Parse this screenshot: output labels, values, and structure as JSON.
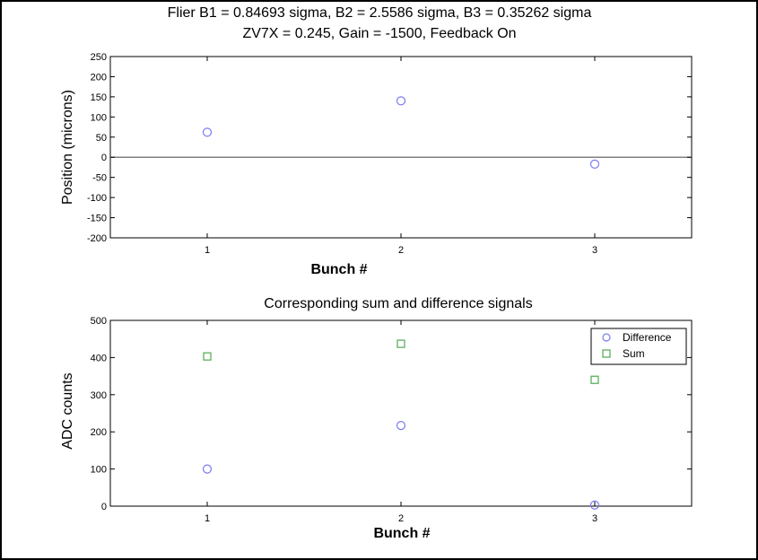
{
  "figure": {
    "title_line1": "Flier B1 = 0.84693 sigma,  B2 = 2.5586 sigma,  B3 = 0.35262 sigma",
    "title_line2": "ZV7X = 0.245, Gain = -1500, Feedback On"
  },
  "colors": {
    "difference": "#7b7bf0",
    "sum": "#4fa94f",
    "axes": "#000000",
    "zero_line": "#808080"
  },
  "chart_data": [
    {
      "type": "scatter",
      "title": "",
      "xlabel": "Bunch #",
      "ylabel": "Position (microns)",
      "xlim": [
        0.5,
        3.5
      ],
      "ylim": [
        -200,
        250
      ],
      "x_ticks": [
        1,
        2,
        3
      ],
      "y_ticks": [
        -200,
        -150,
        -100,
        -50,
        0,
        50,
        100,
        150,
        200,
        250
      ],
      "grid": false,
      "zero_line": true,
      "series": [
        {
          "marker": "circle",
          "color": "#7b7bf0",
          "x": [
            1,
            2,
            3
          ],
          "y": [
            62,
            140,
            -17
          ]
        }
      ]
    },
    {
      "type": "scatter",
      "title": "Corresponding sum and difference signals",
      "xlabel": "Bunch #",
      "ylabel": "ADC counts",
      "xlim": [
        0.5,
        3.5
      ],
      "ylim": [
        0,
        500
      ],
      "x_ticks": [
        1,
        2,
        3
      ],
      "y_ticks": [
        0,
        100,
        200,
        300,
        400,
        500
      ],
      "grid": false,
      "legend_position": "top-right",
      "series": [
        {
          "name": "Difference",
          "marker": "circle",
          "color": "#7b7bf0",
          "x": [
            1,
            2,
            3
          ],
          "y": [
            100,
            217,
            3
          ]
        },
        {
          "name": "Sum",
          "marker": "square",
          "color": "#4fa94f",
          "x": [
            1,
            2,
            3
          ],
          "y": [
            403,
            437,
            340
          ]
        }
      ]
    }
  ]
}
